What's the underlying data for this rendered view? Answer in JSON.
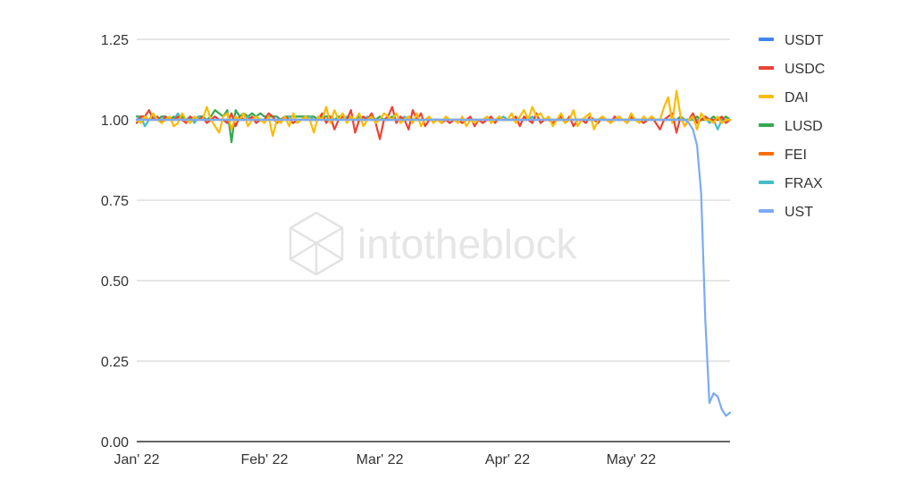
{
  "watermark": "intotheblock",
  "chart_data": {
    "type": "line",
    "title": "",
    "xlabel": "",
    "ylabel": "",
    "ylim": [
      0,
      1.25
    ],
    "yticks": [
      "0.00",
      "0.25",
      "0.50",
      "0.75",
      "1.00",
      "1.25"
    ],
    "xticks": [
      {
        "label": "Jan' 22",
        "day": 0
      },
      {
        "label": "Feb' 22",
        "day": 31
      },
      {
        "label": "Mar' 22",
        "day": 59
      },
      {
        "label": "Apr' 22",
        "day": 90
      },
      {
        "label": "May' 22",
        "day": 120
      }
    ],
    "grid": true,
    "legend_position": "right",
    "x": [
      0,
      1,
      2,
      3,
      4,
      5,
      6,
      7,
      8,
      9,
      10,
      11,
      12,
      13,
      14,
      15,
      16,
      17,
      18,
      19,
      20,
      21,
      22,
      23,
      24,
      25,
      26,
      27,
      28,
      29,
      30,
      31,
      32,
      33,
      34,
      35,
      36,
      37,
      38,
      39,
      40,
      41,
      42,
      43,
      44,
      45,
      46,
      47,
      48,
      49,
      50,
      51,
      52,
      53,
      54,
      55,
      56,
      57,
      58,
      59,
      60,
      61,
      62,
      63,
      64,
      65,
      66,
      67,
      68,
      69,
      70,
      71,
      72,
      73,
      74,
      75,
      76,
      77,
      78,
      79,
      80,
      81,
      82,
      83,
      84,
      85,
      86,
      87,
      88,
      89,
      90,
      91,
      92,
      93,
      94,
      95,
      96,
      97,
      98,
      99,
      100,
      101,
      102,
      103,
      104,
      105,
      106,
      107,
      108,
      109,
      110,
      111,
      112,
      113,
      114,
      115,
      116,
      117,
      118,
      119,
      120,
      121,
      122,
      123,
      124,
      125,
      126,
      127,
      128,
      129,
      130,
      131,
      132,
      133,
      134,
      135,
      136,
      137,
      138,
      139,
      140,
      141,
      142,
      143,
      144
    ],
    "series": [
      {
        "name": "USDT",
        "color": "#4285f4",
        "values": [
          1.0,
          1.0,
          1.0,
          1.0,
          1.0,
          1.0,
          1.0,
          1.0,
          1.0,
          1.0,
          1.0,
          1.0,
          1.0,
          1.0,
          1.0,
          1.0,
          1.0,
          1.0,
          1.0,
          1.0,
          1.0,
          1.0,
          1.0,
          1.0,
          1.0,
          1.0,
          1.0,
          1.0,
          1.0,
          1.0,
          1.0,
          1.0,
          1.0,
          1.0,
          1.0,
          1.0,
          1.0,
          1.0,
          1.0,
          1.0,
          1.0,
          1.0,
          1.0,
          1.0,
          1.0,
          1.0,
          1.0,
          1.0,
          1.0,
          1.0,
          1.0,
          1.0,
          1.0,
          1.0,
          1.0,
          1.0,
          1.0,
          1.0,
          1.0,
          1.0,
          1.0,
          1.0,
          1.0,
          1.0,
          1.0,
          1.0,
          1.0,
          1.0,
          1.0,
          1.0,
          1.0,
          1.0,
          1.0,
          1.0,
          1.0,
          1.0,
          1.0,
          1.0,
          1.0,
          1.0,
          1.0,
          1.0,
          1.0,
          1.0,
          1.0,
          1.0,
          1.0,
          1.0,
          1.0,
          1.0,
          1.0,
          1.0,
          1.0,
          1.0,
          1.0,
          1.0,
          1.0,
          1.0,
          1.0,
          1.0,
          1.0,
          1.0,
          1.0,
          1.0,
          1.0,
          1.0,
          1.0,
          1.0,
          1.0,
          1.0,
          1.0,
          1.0,
          1.0,
          1.0,
          1.0,
          1.0,
          1.0,
          1.0,
          1.0,
          1.0,
          1.0,
          1.0,
          1.0,
          1.0,
          1.0,
          1.0,
          1.0,
          1.0,
          1.0,
          1.0,
          1.0,
          1.0,
          1.0,
          1.0,
          1.0,
          1.0,
          1.0,
          1.0,
          1.0,
          1.0,
          1.0,
          1.0,
          1.0,
          1.0,
          1.0
        ]
      },
      {
        "name": "USDC",
        "color": "#ea4335",
        "values": [
          0.99,
          1.01,
          1.01,
          1.03,
          1.0,
          1.01,
          0.99,
          1.01,
          1.0,
          1.0,
          1.01,
          1.0,
          0.99,
          1.01,
          1.0,
          1.0,
          1.01,
          0.99,
          1.0,
          1.01,
          1.0,
          1.0,
          0.99,
          1.02,
          0.98,
          1.01,
          1.0,
          1.0,
          1.01,
          0.99,
          1.0,
          1.0,
          1.02,
          1.01,
          0.99,
          1.0,
          1.01,
          1.0,
          0.99,
          1.0,
          1.0,
          1.01,
          1.0,
          1.0,
          1.0,
          1.02,
          0.99,
          1.01,
          0.97,
          1.0,
          1.01,
          1.0,
          1.03,
          0.96,
          1.0,
          1.01,
          1.0,
          1.02,
          0.99,
          0.94,
          1.0,
          1.01,
          1.04,
          0.99,
          1.01,
          1.0,
          0.97,
          1.03,
          1.0,
          1.02,
          0.98,
          1.0,
          1.0,
          1.0,
          0.99,
          1.0,
          0.99,
          1.0,
          1.0,
          0.99,
          1.0,
          1.01,
          0.98,
          1.0,
          0.99,
          1.0,
          1.01,
          0.99,
          1.01,
          1.0,
          1.0,
          1.0,
          1.01,
          0.98,
          1.01,
          1.0,
          0.99,
          1.02,
          0.99,
          1.0,
          1.0,
          0.99,
          1.0,
          1.01,
          0.99,
          1.01,
          0.98,
          1.0,
          1.0,
          0.99,
          1.01,
          1.0,
          0.99,
          1.01,
          1.0,
          0.99,
          1.01,
          1.0,
          1.0,
          0.99,
          1.01,
          1.0,
          1.0,
          0.99,
          1.0,
          1.01,
          0.99,
          0.97,
          1.0,
          1.01,
          1.02,
          0.96,
          1.01,
          0.98,
          1.0,
          1.02,
          0.99,
          1.0,
          1.01,
          1.0,
          1.0,
          1.0,
          1.01,
          0.99,
          1.0
        ]
      },
      {
        "name": "DAI",
        "color": "#fbbc04",
        "values": [
          1.0,
          0.99,
          1.01,
          1.0,
          1.02,
          1.0,
          0.99,
          1.0,
          1.01,
          0.98,
          0.99,
          1.02,
          1.0,
          0.99,
          1.01,
          1.0,
          1.0,
          1.04,
          1.0,
          0.98,
          0.96,
          1.01,
          1.02,
          0.97,
          1.01,
          1.0,
          1.02,
          0.98,
          1.0,
          1.01,
          1.0,
          0.99,
          1.01,
          0.95,
          1.0,
          0.99,
          1.01,
          0.98,
          1.02,
          0.99,
          1.0,
          1.01,
          1.0,
          0.96,
          1.01,
          1.0,
          1.04,
          0.99,
          1.03,
          1.0,
          1.02,
          0.99,
          1.01,
          1.0,
          1.02,
          0.98,
          1.0,
          1.01,
          0.99,
          1.0,
          1.02,
          1.01,
          1.0,
          1.02,
          0.99,
          1.0,
          1.01,
          0.99,
          1.02,
          0.98,
          1.0,
          1.01,
          0.99,
          1.0,
          0.99,
          1.01,
          1.0,
          1.0,
          0.99,
          1.01,
          0.98,
          1.0,
          0.99,
          1.0,
          1.0,
          1.01,
          0.99,
          1.0,
          1.01,
          1.0,
          1.0,
          1.02,
          0.99,
          1.01,
          1.03,
          1.0,
          1.04,
          1.01,
          1.02,
          1.0,
          1.01,
          0.98,
          1.0,
          1.02,
          0.99,
          1.0,
          1.03,
          0.98,
          1.0,
          1.01,
          1.02,
          0.97,
          1.0,
          1.01,
          1.0,
          0.99,
          1.0,
          1.01,
          1.0,
          0.99,
          1.02,
          1.0,
          0.99,
          1.01,
          1.0,
          1.01,
          1.0,
          1.0,
          1.04,
          1.07,
          0.99,
          1.09,
          1.01,
          0.98,
          1.0,
          1.01,
          0.97,
          1.02,
          1.0,
          1.0,
          0.99,
          1.01,
          0.99,
          1.0,
          1.0
        ]
      },
      {
        "name": "LUSD",
        "color": "#34a853",
        "values": [
          1.01,
          1.01,
          1.01,
          1.0,
          1.01,
          1.0,
          1.01,
          1.01,
          1.0,
          1.01,
          1.0,
          1.01,
          1.0,
          1.01,
          1.0,
          1.01,
          1.01,
          1.0,
          1.01,
          1.03,
          1.02,
          1.01,
          1.03,
          0.93,
          1.03,
          1.01,
          1.02,
          1.01,
          1.02,
          1.01,
          1.02,
          1.01,
          1.01,
          1.01,
          1.01,
          1.0,
          1.01,
          1.01,
          1.01,
          1.01,
          1.01,
          1.01,
          1.01,
          1.01,
          1.0,
          1.01,
          1.01,
          1.01,
          1.0,
          1.01,
          1.01,
          1.0,
          1.01,
          1.0,
          1.01,
          1.0,
          1.0,
          1.01,
          1.0,
          1.01,
          1.0,
          1.0,
          1.01,
          1.0,
          1.0,
          1.0,
          1.01,
          1.0,
          1.0,
          1.0,
          1.0,
          1.0,
          1.0,
          1.0,
          1.0,
          1.0,
          1.0,
          1.0,
          1.0,
          1.0,
          1.0,
          1.0,
          1.0,
          1.0,
          1.0,
          1.0,
          1.0,
          1.0,
          1.0,
          1.0,
          1.0,
          1.0,
          1.0,
          1.0,
          1.0,
          1.0,
          1.0,
          1.0,
          1.0,
          1.0,
          1.0,
          1.0,
          1.0,
          1.0,
          1.0,
          1.0,
          1.0,
          1.0,
          1.0,
          1.0,
          1.0,
          1.0,
          1.0,
          1.0,
          1.0,
          1.0,
          1.0,
          1.0,
          1.0,
          1.0,
          1.0,
          1.0,
          1.0,
          1.0,
          1.0,
          1.0,
          1.0,
          1.0,
          1.0,
          1.0,
          1.0,
          1.0,
          1.01,
          1.0,
          1.0,
          1.0,
          1.01,
          1.0,
          1.0,
          1.0,
          1.01,
          1.0,
          1.0,
          1.01,
          1.0
        ]
      },
      {
        "name": "FEI",
        "color": "#ff6d01",
        "values": [
          1.0,
          1.0,
          1.0,
          1.0,
          1.0,
          1.0,
          1.0,
          1.0,
          1.0,
          1.0,
          1.0,
          1.0,
          1.0,
          1.0,
          1.0,
          1.0,
          1.0,
          1.0,
          1.0,
          1.0,
          1.0,
          1.0,
          1.0,
          1.0,
          1.0,
          1.0,
          1.0,
          1.0,
          1.0,
          1.0,
          1.0,
          1.0,
          1.0,
          1.0,
          1.0,
          1.0,
          1.0,
          1.0,
          1.0,
          1.0,
          1.0,
          1.0,
          1.0,
          1.0,
          1.0,
          1.0,
          1.0,
          1.0,
          1.0,
          1.0,
          1.0,
          1.0,
          1.0,
          1.0,
          1.0,
          1.0,
          1.0,
          1.0,
          1.0,
          1.0,
          1.0,
          1.0,
          1.0,
          1.0,
          1.0,
          1.0,
          1.0,
          1.0,
          1.0,
          1.0,
          1.0,
          1.0,
          1.0,
          1.0,
          1.0,
          1.0,
          1.0,
          1.0,
          1.0,
          1.0,
          1.0,
          1.0,
          1.0,
          1.0,
          1.0,
          1.0,
          1.0,
          1.0,
          1.0,
          1.0,
          1.0,
          1.0,
          1.0,
          1.0,
          1.0,
          1.0,
          1.0,
          1.0,
          1.0,
          1.0,
          1.0,
          1.0,
          1.0,
          1.0,
          1.0,
          1.0,
          1.0,
          1.0,
          1.0,
          1.0,
          1.0,
          1.0,
          1.0,
          1.0,
          1.0,
          1.0,
          1.0,
          1.0,
          1.0,
          1.0,
          1.0,
          1.0,
          1.0,
          1.0,
          1.0,
          1.0,
          1.0,
          1.0,
          1.0,
          1.0,
          1.0,
          1.0,
          1.0,
          1.0,
          1.0,
          1.0,
          1.0,
          1.0,
          1.0,
          1.0,
          1.0,
          1.0,
          1.0,
          1.0,
          1.0
        ]
      },
      {
        "name": "FRAX",
        "color": "#46bdc6",
        "values": [
          1.0,
          1.01,
          0.98,
          1.0,
          1.01,
          1.0,
          1.0,
          1.01,
          1.0,
          1.0,
          1.02,
          1.0,
          1.0,
          1.01,
          0.99,
          1.01,
          1.0,
          1.0,
          1.0,
          1.01,
          1.0,
          1.0,
          0.99,
          1.0,
          1.01,
          1.0,
          1.0,
          1.01,
          1.0,
          1.0,
          1.0,
          1.0,
          1.0,
          1.0,
          1.0,
          1.0,
          1.0,
          1.01,
          1.0,
          1.0,
          1.0,
          1.0,
          1.01,
          1.0,
          1.0,
          1.0,
          1.0,
          1.01,
          1.0,
          1.0,
          1.0,
          1.01,
          1.0,
          1.0,
          1.0,
          1.0,
          1.01,
          1.0,
          1.0,
          1.0,
          1.0,
          1.0,
          1.0,
          1.0,
          1.0,
          1.01,
          1.0,
          1.0,
          1.0,
          1.0,
          1.0,
          1.0,
          1.0,
          1.0,
          1.0,
          1.0,
          1.0,
          1.0,
          1.0,
          1.0,
          1.0,
          1.0,
          1.0,
          1.0,
          1.0,
          1.0,
          1.0,
          1.0,
          1.0,
          1.01,
          1.0,
          1.0,
          1.0,
          1.0,
          1.0,
          1.0,
          1.01,
          1.0,
          1.0,
          1.0,
          1.0,
          1.0,
          1.0,
          1.0,
          1.0,
          1.0,
          1.0,
          1.0,
          1.0,
          1.0,
          1.0,
          1.0,
          1.0,
          1.0,
          1.0,
          1.0,
          1.0,
          1.0,
          1.0,
          1.0,
          1.0,
          1.0,
          1.0,
          1.0,
          1.0,
          1.0,
          1.0,
          1.0,
          1.0,
          1.0,
          1.0,
          1.0,
          1.0,
          1.0,
          1.0,
          1.0,
          1.0,
          1.0,
          1.01,
          0.99,
          1.0,
          0.97,
          1.0,
          1.0,
          1.0
        ]
      },
      {
        "name": "UST",
        "color": "#7baaf7",
        "values": [
          1.0,
          1.0,
          1.0,
          1.0,
          1.0,
          1.0,
          1.0,
          1.0,
          1.0,
          1.0,
          1.0,
          1.0,
          1.0,
          1.0,
          1.0,
          1.0,
          1.0,
          1.0,
          1.0,
          1.0,
          1.0,
          1.0,
          1.0,
          1.0,
          1.0,
          1.0,
          1.0,
          1.0,
          1.0,
          1.0,
          1.0,
          1.0,
          1.0,
          1.0,
          1.0,
          1.0,
          1.0,
          1.0,
          1.0,
          1.0,
          1.0,
          1.0,
          1.0,
          1.0,
          1.0,
          1.0,
          1.0,
          1.0,
          1.0,
          1.0,
          1.0,
          1.0,
          1.0,
          1.0,
          1.0,
          1.0,
          1.0,
          1.0,
          1.0,
          1.0,
          1.0,
          1.0,
          1.0,
          1.0,
          1.0,
          1.0,
          1.0,
          1.0,
          1.0,
          1.0,
          1.0,
          1.0,
          1.0,
          1.0,
          1.0,
          1.0,
          1.0,
          1.0,
          1.0,
          1.0,
          1.0,
          1.0,
          1.0,
          1.0,
          1.0,
          1.0,
          1.0,
          1.0,
          1.0,
          1.0,
          1.0,
          1.0,
          1.0,
          1.0,
          1.0,
          1.0,
          1.0,
          1.0,
          1.0,
          1.0,
          1.0,
          1.0,
          1.0,
          1.0,
          1.0,
          1.0,
          1.0,
          1.0,
          1.0,
          1.0,
          1.0,
          1.0,
          1.0,
          1.0,
          1.0,
          1.0,
          1.0,
          1.0,
          1.0,
          1.0,
          1.0,
          1.0,
          1.0,
          1.0,
          1.0,
          1.0,
          1.0,
          1.0,
          1.0,
          1.0,
          1.0,
          1.0,
          1.0,
          1.0,
          0.99,
          0.97,
          0.92,
          0.77,
          0.38,
          0.12,
          0.15,
          0.14,
          0.1,
          0.08,
          0.09
        ]
      }
    ]
  }
}
